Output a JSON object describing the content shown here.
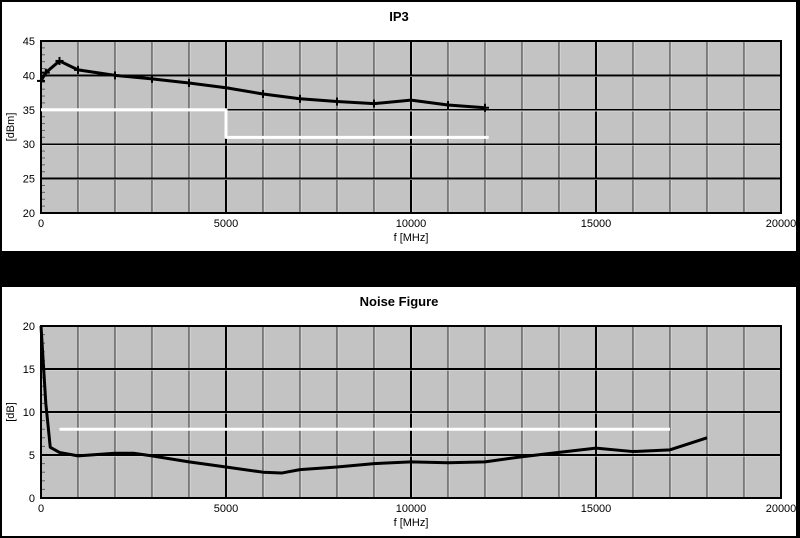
{
  "colors": {
    "frame_bg": "#000000",
    "panel_bg": "#ffffff",
    "plot_bg": "#c3c3c3",
    "grid_major": "#000000",
    "grid_minor": "#2f2f2f",
    "grid_highlight": "#dcdcdc",
    "curve": "#000000",
    "limit_line": "#ffffff"
  },
  "chart_data": [
    {
      "type": "line",
      "title": "IP3",
      "xlabel": "f [MHz]",
      "ylabel": "[dBm]",
      "xlim": [
        0,
        20000
      ],
      "ylim": [
        20,
        45
      ],
      "x_ticks": [
        0,
        5000,
        10000,
        15000,
        20000
      ],
      "y_ticks": [
        20,
        25,
        30,
        35,
        40,
        45
      ],
      "x_minor_step": 1000,
      "grid": "on",
      "legend": "none",
      "series": [
        {
          "name": "limit-line",
          "color": "#ffffff",
          "width": 3,
          "marker": "none",
          "x": [
            0,
            5000,
            5000,
            12100
          ],
          "y": [
            35,
            35,
            31,
            31
          ]
        },
        {
          "name": "IP3",
          "color": "#000000",
          "width": 3,
          "marker": "plus",
          "x": [
            0,
            130,
            500,
            1000,
            2000,
            3000,
            4000,
            5000,
            6000,
            7000,
            8000,
            9000,
            10000,
            11000,
            12000
          ],
          "y": [
            39.2,
            40.4,
            42.1,
            40.8,
            40.0,
            39.5,
            38.9,
            38.2,
            37.3,
            36.6,
            36.2,
            35.9,
            36.4,
            35.7,
            35.3
          ]
        }
      ]
    },
    {
      "type": "line",
      "title": "Noise Figure",
      "xlabel": "f [MHz]",
      "ylabel": "[dB]",
      "xlim": [
        0,
        20000
      ],
      "ylim": [
        0,
        20
      ],
      "x_ticks": [
        0,
        5000,
        10000,
        15000,
        20000
      ],
      "y_ticks": [
        0,
        5,
        10,
        15,
        20
      ],
      "x_minor_step": 1000,
      "grid": "on",
      "legend": "none",
      "series": [
        {
          "name": "limit-line",
          "color": "#ffffff",
          "width": 3,
          "marker": "none",
          "x": [
            500,
            17000
          ],
          "y": [
            8,
            8
          ]
        },
        {
          "name": "NoiseFigure",
          "color": "#000000",
          "width": 3,
          "marker": "none",
          "x": [
            0,
            130,
            250,
            500,
            1000,
            2000,
            2500,
            3000,
            4000,
            5000,
            6000,
            6500,
            7000,
            8000,
            9000,
            10000,
            11000,
            12000,
            13000,
            14000,
            15000,
            16000,
            17000,
            18000
          ],
          "y": [
            20,
            11,
            5.9,
            5.3,
            4.9,
            5.2,
            5.2,
            4.9,
            4.2,
            3.6,
            3.0,
            2.9,
            3.3,
            3.6,
            4.0,
            4.2,
            4.1,
            4.2,
            4.8,
            5.3,
            5.8,
            5.4,
            5.6,
            7.0
          ]
        }
      ]
    }
  ]
}
